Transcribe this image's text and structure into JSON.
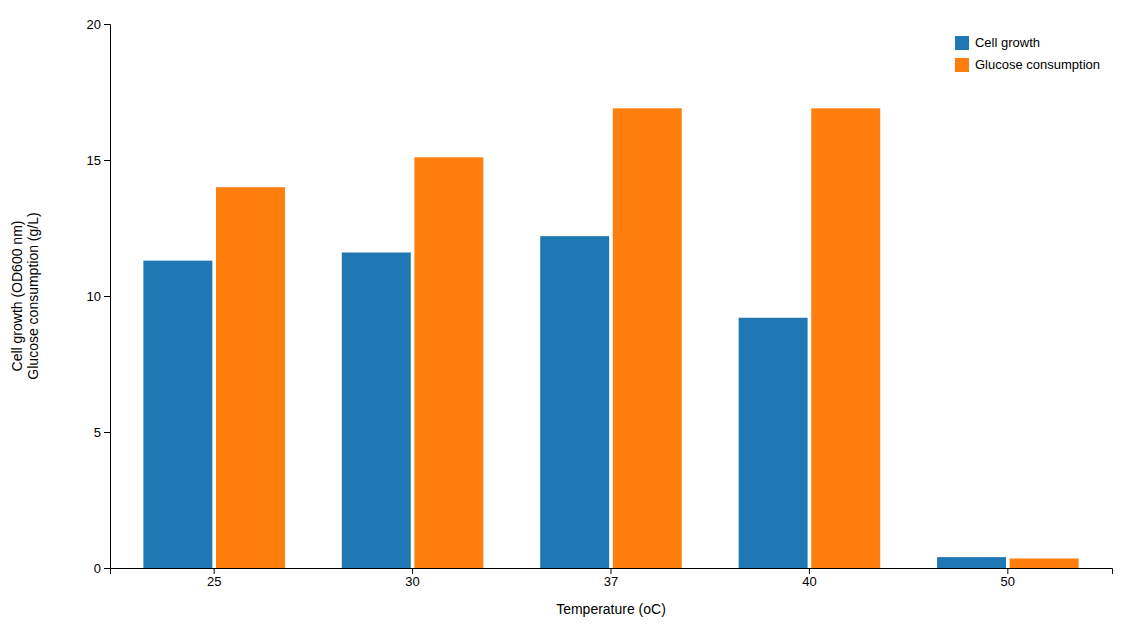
{
  "chart_data": {
    "type": "bar",
    "categories": [
      "25",
      "30",
      "37",
      "40",
      "50"
    ],
    "series": [
      {
        "name": "Cell growth",
        "values": [
          11.3,
          11.6,
          12.2,
          9.2,
          0.4
        ]
      },
      {
        "name": "Glucose consumption",
        "values": [
          14.0,
          15.1,
          16.9,
          16.9,
          0.35
        ]
      }
    ],
    "x_label": "Temperature (oC)",
    "y_label": "Cell growth (OD600 nm)\nGlucose consumption (g/L)",
    "ylim": [
      0,
      20
    ],
    "yticks": [
      0,
      5,
      10,
      15,
      20
    ],
    "grid": false,
    "legend": "upper right"
  }
}
